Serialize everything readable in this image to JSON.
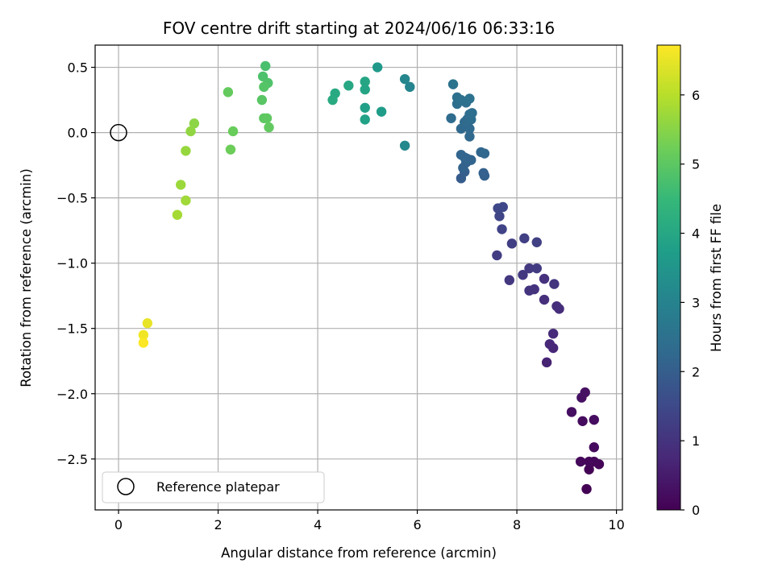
{
  "chart_data": {
    "type": "scatter",
    "title": "FOV centre drift starting at 2024/06/16 06:33:16",
    "xlabel": "Angular distance from reference (arcmin)",
    "ylabel": "Rotation from reference (arcmin)",
    "xlim": [
      -0.47,
      10.12
    ],
    "ylim": [
      -2.89,
      0.67
    ],
    "xticks": [
      0,
      2,
      4,
      6,
      8,
      10
    ],
    "xtick_labels": [
      "0",
      "2",
      "4",
      "6",
      "8",
      "10"
    ],
    "yticks": [
      0.5,
      0.0,
      -0.5,
      -1.0,
      -1.5,
      -2.0,
      -2.5
    ],
    "ytick_labels": [
      "0.5",
      "0.0",
      "−0.5",
      "−1.0",
      "−1.5",
      "−2.0",
      "−2.5"
    ],
    "grid": true,
    "legend": {
      "position": "lower-left",
      "entries": [
        "Reference platepar"
      ]
    },
    "reference_point": {
      "x": 0,
      "y": 0
    },
    "colorbar": {
      "label": "Hours from first FF file",
      "colormap": "viridis",
      "range": [
        0,
        6.72
      ],
      "ticks": [
        0,
        1,
        2,
        3,
        4,
        5,
        6
      ],
      "tick_labels": [
        "0",
        "1",
        "2",
        "3",
        "4",
        "5",
        "6"
      ]
    },
    "points": [
      {
        "x": 9.4,
        "y": -2.73,
        "h": 0.02
      },
      {
        "x": 9.45,
        "y": -2.58,
        "h": 0.05
      },
      {
        "x": 9.65,
        "y": -2.54,
        "h": 0.08
      },
      {
        "x": 9.55,
        "y": -2.52,
        "h": 0.1
      },
      {
        "x": 9.45,
        "y": -2.52,
        "h": 0.12
      },
      {
        "x": 9.28,
        "y": -2.52,
        "h": 0.14
      },
      {
        "x": 9.55,
        "y": -2.41,
        "h": 0.18
      },
      {
        "x": 9.32,
        "y": -2.21,
        "h": 0.2
      },
      {
        "x": 9.55,
        "y": -2.2,
        "h": 0.22
      },
      {
        "x": 9.1,
        "y": -2.14,
        "h": 0.25
      },
      {
        "x": 9.3,
        "y": -2.03,
        "h": 0.28
      },
      {
        "x": 9.37,
        "y": -1.99,
        "h": 0.31
      },
      {
        "x": 8.6,
        "y": -1.76,
        "h": 0.65
      },
      {
        "x": 8.73,
        "y": -1.65,
        "h": 0.72
      },
      {
        "x": 8.66,
        "y": -1.62,
        "h": 0.78
      },
      {
        "x": 8.73,
        "y": -1.54,
        "h": 0.82
      },
      {
        "x": 8.85,
        "y": -1.35,
        "h": 0.86
      },
      {
        "x": 8.8,
        "y": -1.33,
        "h": 0.9
      },
      {
        "x": 8.55,
        "y": -1.28,
        "h": 0.93
      },
      {
        "x": 8.55,
        "y": -1.12,
        "h": 0.95
      },
      {
        "x": 8.35,
        "y": -1.2,
        "h": 1.0
      },
      {
        "x": 8.25,
        "y": -1.21,
        "h": 1.02
      },
      {
        "x": 8.75,
        "y": -1.16,
        "h": 1.05
      },
      {
        "x": 7.85,
        "y": -1.13,
        "h": 1.1
      },
      {
        "x": 8.12,
        "y": -1.09,
        "h": 1.12
      },
      {
        "x": 8.25,
        "y": -1.04,
        "h": 1.15
      },
      {
        "x": 8.4,
        "y": -1.04,
        "h": 1.18
      },
      {
        "x": 7.6,
        "y": -0.94,
        "h": 1.22
      },
      {
        "x": 7.9,
        "y": -0.85,
        "h": 1.25
      },
      {
        "x": 8.4,
        "y": -0.84,
        "h": 1.28
      },
      {
        "x": 8.15,
        "y": -0.81,
        "h": 1.3
      },
      {
        "x": 7.7,
        "y": -0.74,
        "h": 1.35
      },
      {
        "x": 7.65,
        "y": -0.64,
        "h": 1.4
      },
      {
        "x": 7.62,
        "y": -0.58,
        "h": 1.45
      },
      {
        "x": 7.72,
        "y": -0.57,
        "h": 1.48
      },
      {
        "x": 6.88,
        "y": -0.35,
        "h": 1.95
      },
      {
        "x": 6.95,
        "y": -0.3,
        "h": 2.0
      },
      {
        "x": 7.35,
        "y": -0.33,
        "h": 2.05
      },
      {
        "x": 7.33,
        "y": -0.31,
        "h": 2.08
      },
      {
        "x": 6.92,
        "y": -0.27,
        "h": 2.1
      },
      {
        "x": 6.98,
        "y": -0.23,
        "h": 2.12
      },
      {
        "x": 7.0,
        "y": -0.2,
        "h": 2.14
      },
      {
        "x": 7.08,
        "y": -0.21,
        "h": 2.16
      },
      {
        "x": 6.88,
        "y": -0.17,
        "h": 2.18
      },
      {
        "x": 6.95,
        "y": -0.19,
        "h": 2.2
      },
      {
        "x": 7.28,
        "y": -0.15,
        "h": 2.22
      },
      {
        "x": 7.35,
        "y": -0.16,
        "h": 2.24
      },
      {
        "x": 7.05,
        "y": -0.03,
        "h": 2.26
      },
      {
        "x": 6.88,
        "y": 0.03,
        "h": 2.28
      },
      {
        "x": 7.05,
        "y": 0.03,
        "h": 2.3
      },
      {
        "x": 6.95,
        "y": 0.08,
        "h": 2.32
      },
      {
        "x": 7.0,
        "y": 0.1,
        "h": 2.34
      },
      {
        "x": 6.68,
        "y": 0.11,
        "h": 2.36
      },
      {
        "x": 7.08,
        "y": 0.1,
        "h": 2.38
      },
      {
        "x": 7.05,
        "y": 0.14,
        "h": 2.4
      },
      {
        "x": 7.1,
        "y": 0.15,
        "h": 2.42
      },
      {
        "x": 6.8,
        "y": 0.22,
        "h": 2.44
      },
      {
        "x": 6.98,
        "y": 0.23,
        "h": 2.46
      },
      {
        "x": 6.8,
        "y": 0.27,
        "h": 2.48
      },
      {
        "x": 6.88,
        "y": 0.25,
        "h": 2.5
      },
      {
        "x": 7.05,
        "y": 0.26,
        "h": 2.52
      },
      {
        "x": 6.72,
        "y": 0.37,
        "h": 2.55
      },
      {
        "x": 5.85,
        "y": 0.35,
        "h": 3.05
      },
      {
        "x": 5.75,
        "y": 0.41,
        "h": 3.1
      },
      {
        "x": 5.75,
        "y": -0.1,
        "h": 3.15
      },
      {
        "x": 5.2,
        "y": 0.5,
        "h": 3.6
      },
      {
        "x": 5.28,
        "y": 0.16,
        "h": 3.7
      },
      {
        "x": 4.95,
        "y": 0.19,
        "h": 3.8
      },
      {
        "x": 4.95,
        "y": 0.1,
        "h": 3.85
      },
      {
        "x": 4.95,
        "y": 0.33,
        "h": 3.9
      },
      {
        "x": 4.95,
        "y": 0.39,
        "h": 3.95
      },
      {
        "x": 4.62,
        "y": 0.36,
        "h": 4.0
      },
      {
        "x": 4.35,
        "y": 0.3,
        "h": 4.05
      },
      {
        "x": 4.3,
        "y": 0.25,
        "h": 4.1
      },
      {
        "x": 2.95,
        "y": 0.51,
        "h": 4.75
      },
      {
        "x": 2.9,
        "y": 0.43,
        "h": 4.8
      },
      {
        "x": 3.0,
        "y": 0.38,
        "h": 4.85
      },
      {
        "x": 2.92,
        "y": 0.35,
        "h": 4.9
      },
      {
        "x": 2.88,
        "y": 0.25,
        "h": 4.95
      },
      {
        "x": 2.92,
        "y": 0.11,
        "h": 5.0
      },
      {
        "x": 2.98,
        "y": 0.11,
        "h": 5.03
      },
      {
        "x": 3.02,
        "y": 0.04,
        "h": 5.06
      },
      {
        "x": 2.2,
        "y": 0.31,
        "h": 5.1
      },
      {
        "x": 2.3,
        "y": 0.01,
        "h": 5.15
      },
      {
        "x": 2.25,
        "y": -0.13,
        "h": 5.2
      },
      {
        "x": 1.52,
        "y": 0.07,
        "h": 5.55
      },
      {
        "x": 1.45,
        "y": 0.01,
        "h": 5.6
      },
      {
        "x": 1.35,
        "y": -0.14,
        "h": 5.65
      },
      {
        "x": 1.25,
        "y": -0.4,
        "h": 5.7
      },
      {
        "x": 1.35,
        "y": -0.52,
        "h": 5.75
      },
      {
        "x": 1.18,
        "y": -0.63,
        "h": 5.8
      },
      {
        "x": 0.58,
        "y": -1.46,
        "h": 6.5
      },
      {
        "x": 0.5,
        "y": -1.55,
        "h": 6.6
      },
      {
        "x": 0.5,
        "y": -1.61,
        "h": 6.7
      }
    ]
  }
}
